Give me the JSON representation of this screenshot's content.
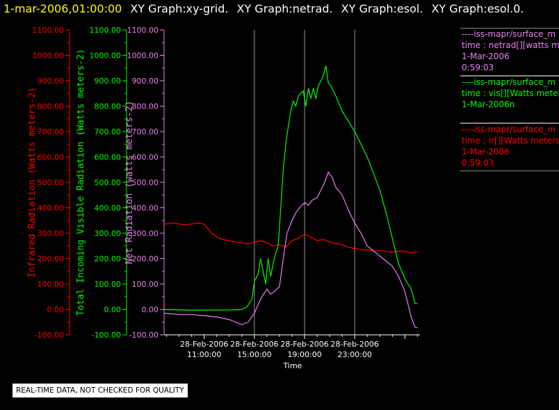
{
  "header": {
    "date": "1-mar-2006,01:00:00",
    "graphs": [
      "XY Graph:xy-grid.",
      "XY Graph:netrad.",
      "XY Graph:esol.",
      "XY Graph:esol.0."
    ]
  },
  "legend": [
    {
      "color": "#ee82ee",
      "lines": [
        "----iss-mapr/surface_m",
        "time : netrad[][watts me",
        "1-Mar-2006",
        "0:59:03"
      ]
    },
    {
      "color": "#00ff00",
      "lines": [
        "----iss-mapr/surface_m",
        "time : vis[][Watts meter",
        "1-Mar-2006n"
      ]
    },
    {
      "color": "#ff0000",
      "lines": [
        "----iss-mapr/surface_m",
        "time : ir[][Watts meters",
        "1-Mar-2006",
        "0:59:03"
      ]
    }
  ],
  "note": "REAL-TIME DATA, NOT CHECKED FOR QUALITY",
  "chart_data": {
    "type": "line",
    "xlabel": "Time",
    "x_range_hours": [
      7.8,
      28.2
    ],
    "x_ticks": [
      {
        "hour": 11,
        "date": "28-Feb-2006",
        "time": "11:00:00"
      },
      {
        "hour": 15,
        "date": "28-Feb-2006",
        "time": "15:00:00"
      },
      {
        "hour": 19,
        "date": "28-Feb-2006",
        "time": "19:00:00"
      },
      {
        "hour": 23,
        "date": "28-Feb-2006",
        "time": "23:00:00"
      }
    ],
    "grid_x_hours": [
      15,
      19,
      23
    ],
    "y_axes": [
      {
        "label": "Infrared Radiation (Watts meters-2)",
        "color": "#ff0000",
        "ylim": [
          -100,
          1100
        ],
        "ticks": [
          "1100.00",
          "1000.00",
          "900.00",
          "800.00",
          "700.00",
          "600.00",
          "500.00",
          "400.00",
          "300.00",
          "200.00",
          "100.00",
          "0.00",
          "-100.00"
        ]
      },
      {
        "label": "Total Incoming Visible Radiation (Watts meters-2)",
        "color": "#00ff00",
        "ylim": [
          -100,
          1100
        ],
        "ticks": [
          "1100.00",
          "1000.00",
          "900.00",
          "800.00",
          "700.00",
          "600.00",
          "500.00",
          "400.00",
          "300.00",
          "200.00",
          "100.00",
          "0.00",
          "-100.00"
        ]
      },
      {
        "label": "Net Radiation (watts meters-2)",
        "color": "#ee82ee",
        "ylim": [
          -100,
          1100
        ],
        "ticks": [
          "1100.00",
          "1000.00",
          "900.00",
          "800.00",
          "700.00",
          "600.00",
          "500.00",
          "400.00",
          "300.00",
          "200.00",
          "100.00",
          "0.00",
          "-100.00"
        ]
      }
    ],
    "series": [
      {
        "color": "#ff0000",
        "x": [
          7.8,
          8.5,
          9.5,
          10.5,
          11,
          11.6,
          12,
          12.5,
          13,
          13.5,
          14,
          14.5,
          15,
          15.5,
          16,
          16.5,
          17,
          17.5,
          18,
          18.5,
          19,
          19.5,
          20,
          20.5,
          21,
          21.5,
          22,
          22.5,
          23,
          23.5,
          24,
          24.5,
          25,
          25.5,
          26,
          26.5,
          27,
          27.5,
          28
        ],
        "y": [
          335,
          340,
          333,
          340,
          335,
          300,
          285,
          275,
          270,
          265,
          262,
          258,
          265,
          270,
          262,
          250,
          255,
          245,
          270,
          280,
          295,
          285,
          270,
          275,
          265,
          260,
          255,
          245,
          240,
          235,
          235,
          230,
          232,
          228,
          225,
          230,
          228,
          222,
          228
        ]
      },
      {
        "color": "#00ff00",
        "x": [
          7.8,
          10,
          13,
          14,
          14.4,
          14.8,
          15,
          15.3,
          15.5,
          15.7,
          15.9,
          16.1,
          16.3,
          16.5,
          16.7,
          16.9,
          17.1,
          17.3,
          17.5,
          17.7,
          17.9,
          18.1,
          18.3,
          18.5,
          18.7,
          18.9,
          19.1,
          19.3,
          19.5,
          19.7,
          19.9,
          20.1,
          20.3,
          20.5,
          20.7,
          20.9,
          21.1,
          21.3,
          21.5,
          22,
          23,
          24,
          25,
          25.5,
          26,
          26.5,
          27,
          27.5,
          27.8,
          28
        ],
        "y": [
          0,
          -3,
          -2,
          0,
          10,
          40,
          110,
          140,
          200,
          150,
          100,
          200,
          130,
          180,
          220,
          250,
          400,
          550,
          650,
          720,
          780,
          820,
          800,
          840,
          850,
          860,
          800,
          870,
          830,
          870,
          830,
          880,
          900,
          920,
          960,
          890,
          880,
          860,
          840,
          780,
          700,
          600,
          470,
          380,
          280,
          180,
          120,
          80,
          25,
          22
        ]
      },
      {
        "color": "#ee82ee",
        "x": [
          7.8,
          9,
          10,
          11,
          12,
          13,
          14,
          14.5,
          15,
          15.3,
          15.6,
          16,
          16.3,
          16.6,
          17,
          17.3,
          17.6,
          18,
          18.3,
          18.6,
          19,
          19.3,
          19.6,
          20,
          20.3,
          20.6,
          20.9,
          21.2,
          21.5,
          22,
          22.5,
          23,
          23.5,
          24,
          25,
          25.5,
          26,
          26.5,
          27,
          27.5,
          27.8,
          28
        ],
        "y": [
          -15,
          -20,
          -20,
          -25,
          -30,
          -40,
          -60,
          -50,
          -15,
          20,
          50,
          80,
          60,
          70,
          90,
          200,
          300,
          350,
          380,
          400,
          420,
          410,
          430,
          440,
          470,
          500,
          540,
          520,
          480,
          450,
          390,
          340,
          300,
          250,
          210,
          190,
          170,
          130,
          70,
          -30,
          -70,
          -72
        ]
      }
    ]
  }
}
